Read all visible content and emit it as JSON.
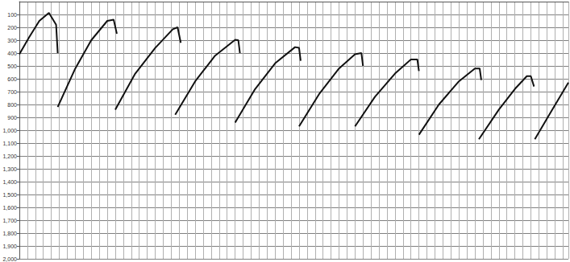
{
  "chart_data": {
    "type": "line",
    "xlim": [
      0,
      687
    ],
    "xticks": [
      0,
      10,
      20,
      30,
      40,
      50,
      60,
      70,
      80,
      90,
      100,
      110,
      120,
      130,
      140,
      150,
      160,
      170,
      180,
      190,
      200,
      210,
      220,
      230,
      240,
      250,
      260,
      270,
      280,
      290,
      300,
      310,
      320,
      330,
      340,
      350,
      360,
      370,
      380,
      390,
      400,
      410,
      420,
      430,
      440,
      450,
      460,
      470,
      480,
      490,
      500,
      510,
      520,
      530,
      540,
      550,
      560,
      570,
      580,
      590,
      600,
      610,
      620,
      630,
      640,
      650,
      660,
      670,
      680
    ],
    "ylim": [
      0,
      2000
    ],
    "yticks": [
      100,
      200,
      300,
      400,
      500,
      600,
      700,
      800,
      900,
      1000,
      1100,
      1200,
      1300,
      1400,
      1500,
      1600,
      1700,
      1800,
      1900,
      2000
    ],
    "grid": true,
    "tick_labels": "y",
    "series": [
      {
        "color": "#111111",
        "x": [
          0,
          12,
          25,
          37,
          46,
          48
        ],
        "values": [
          410,
          280,
          150,
          88,
          180,
          400
        ]
      },
      {
        "color": "#111111",
        "x": [
          48,
          70,
          90,
          110,
          118,
          122
        ],
        "values": [
          820,
          520,
          300,
          150,
          140,
          250
        ]
      },
      {
        "color": "#111111",
        "x": [
          120,
          145,
          170,
          192,
          198,
          202
        ],
        "values": [
          840,
          560,
          360,
          215,
          200,
          320
        ]
      },
      {
        "color": "#111111",
        "x": [
          195,
          220,
          245,
          270,
          274,
          276
        ],
        "values": [
          880,
          620,
          420,
          297,
          300,
          400
        ]
      },
      {
        "color": "#111111",
        "x": [
          270,
          295,
          320,
          345,
          350,
          352
        ],
        "values": [
          940,
          680,
          480,
          354,
          360,
          460
        ]
      },
      {
        "color": "#111111",
        "x": [
          350,
          375,
          400,
          420,
          428,
          430
        ],
        "values": [
          970,
          720,
          520,
          410,
          400,
          500
        ]
      },
      {
        "color": "#111111",
        "x": [
          420,
          445,
          470,
          490,
          498,
          500
        ],
        "values": [
          970,
          740,
          560,
          450,
          450,
          540
        ]
      },
      {
        "color": "#111111",
        "x": [
          500,
          525,
          550,
          570,
          576,
          578
        ],
        "values": [
          1035,
          800,
          620,
          520,
          520,
          610
        ]
      },
      {
        "color": "#111111",
        "x": [
          575,
          600,
          620,
          635,
          640,
          644
        ],
        "values": [
          1070,
          840,
          680,
          580,
          580,
          660
        ]
      },
      {
        "color": "#111111",
        "x": [
          645,
          665,
          687
        ],
        "values": [
          1070,
          860,
          630
        ]
      }
    ]
  }
}
